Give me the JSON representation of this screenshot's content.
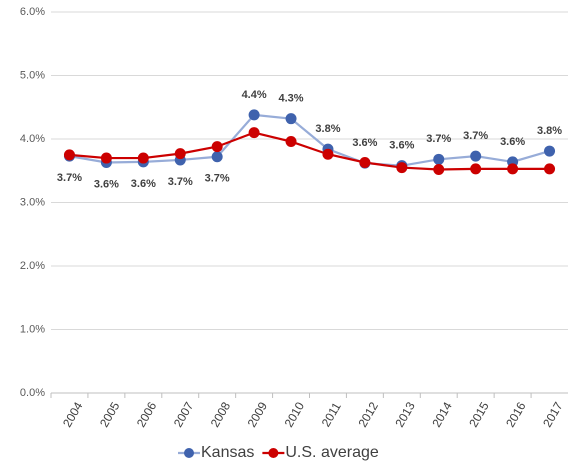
{
  "chart_data": {
    "type": "line",
    "categories": [
      "2004",
      "2005",
      "2006",
      "2007",
      "2008",
      "2009",
      "2010",
      "2011",
      "2012",
      "2013",
      "2014",
      "2015",
      "2016",
      "2017"
    ],
    "series": [
      {
        "name": "Kansas",
        "color": "#3f62ad",
        "line_color": "#97acd8",
        "values": [
          3.73,
          3.63,
          3.64,
          3.67,
          3.72,
          4.38,
          4.32,
          3.84,
          3.62,
          3.58,
          3.68,
          3.73,
          3.64,
          3.81
        ],
        "value_labels": [
          "3.7%",
          "3.6%",
          "3.6%",
          "3.7%",
          "3.7%",
          "4.4%",
          "4.3%",
          "3.8%",
          "3.6%",
          "3.6%",
          "3.7%",
          "3.7%",
          "3.6%",
          "3.8%"
        ]
      },
      {
        "name": "U.S. average",
        "color": "#cc0000",
        "line_color": "#cc0000",
        "values": [
          3.75,
          3.7,
          3.7,
          3.77,
          3.88,
          4.1,
          3.96,
          3.76,
          3.63,
          3.55,
          3.52,
          3.53,
          3.53,
          3.53
        ]
      }
    ],
    "ylim": [
      0,
      6
    ],
    "yticks": [
      {
        "value": 0,
        "label": "0.0%"
      },
      {
        "value": 1,
        "label": "1.0%"
      },
      {
        "value": 2,
        "label": "2.0%"
      },
      {
        "value": 3,
        "label": "3.0%"
      },
      {
        "value": 4,
        "label": "4.0%"
      },
      {
        "value": 5,
        "label": "5.0%"
      },
      {
        "value": 6,
        "label": "6.0%"
      }
    ],
    "grid": true,
    "legend": "bottom"
  }
}
